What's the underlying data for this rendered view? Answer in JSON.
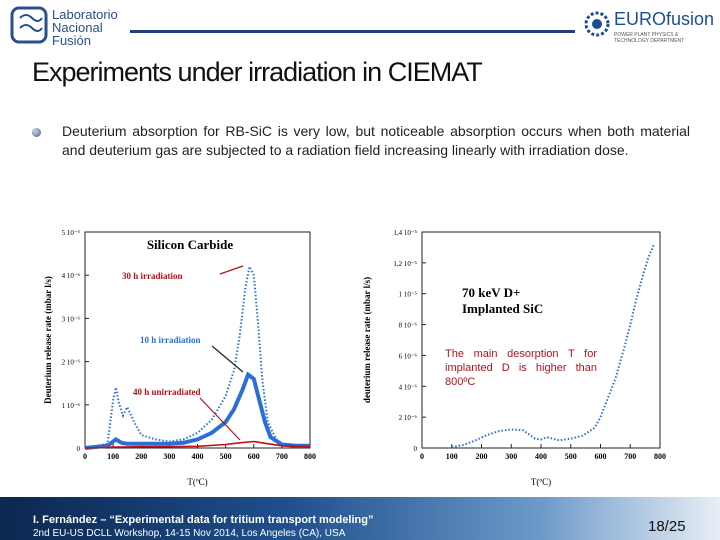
{
  "header": {
    "logo_left_lines": [
      "Laboratorio",
      "Nacional",
      "Fusión"
    ],
    "logo_right_name": "EUROfusion",
    "logo_right_sub_lines": [
      "POWER PLANT PHYSICS &",
      "TECHNOLOGY DEPARTMENT"
    ]
  },
  "slide": {
    "title": "Experiments under irradiation in CIEMAT",
    "bullet": "Deuterium absorption for RB-SiC is very low, but noticeable absorption occurs when both material and deuterium gas are subjected to a radiation field increasing linearly with irradiation dose.",
    "callout": "The main desorption T for implanted D is higher than 800ºC"
  },
  "footer": {
    "line1": "I. Fernández – “Experimental data for tritium transport modeling”",
    "line2": "2nd EU-US DCLL Workshop, 14-15 Nov 2014, Los Angeles (CA), USA",
    "page": "18/25"
  },
  "colors": {
    "series_blue": "#2b6fd6",
    "series_red": "#c0111a",
    "footer_dark": "#0c2750"
  },
  "chart_data": [
    {
      "type": "line",
      "title": "Silicon Carbide",
      "xlabel": "T(ºC)",
      "ylabel": "Deuterium release rate (mbar l/s)",
      "xlim": [
        0,
        800
      ],
      "ylim": [
        0,
        5e-06
      ],
      "x_ticks": [
        "0",
        "100",
        "200",
        "300",
        "400",
        "500",
        "600",
        "700",
        "800"
      ],
      "y_ticks": [
        "0",
        "1 10⁻⁶",
        "2 10⁻⁶",
        "3 10⁻⁶",
        "4 10⁻⁶",
        "5 10⁻⁶"
      ],
      "series": [
        {
          "name": "30 h irradiation",
          "color": "#2b6fd6",
          "style": "dotted",
          "x": [
            0,
            80,
            100,
            110,
            120,
            135,
            150,
            175,
            200,
            250,
            300,
            350,
            400,
            450,
            500,
            530,
            550,
            570,
            585,
            600,
            615,
            630,
            650,
            680,
            700,
            750,
            800
          ],
          "y": [
            0,
            1e-07,
            1.1e-06,
            1.4e-06,
            1.05e-06,
            7.5e-07,
            9.5e-07,
            6e-07,
            3e-07,
            2e-07,
            1.5e-07,
            2e-07,
            3.5e-07,
            6.5e-07,
            1.2e-06,
            1.8e-06,
            2.6e-06,
            3.7e-06,
            4.2e-06,
            4e-06,
            2.9e-06,
            1.6e-06,
            6e-07,
            2e-07,
            1e-07,
            5e-08,
            5e-08
          ]
        },
        {
          "name": "10 h irradiation",
          "color": "#2b6fd6",
          "style": "solid-thick",
          "x": [
            0,
            80,
            110,
            130,
            150,
            200,
            300,
            350,
            400,
            450,
            500,
            530,
            560,
            580,
            600,
            620,
            640,
            660,
            700,
            750,
            800
          ],
          "y": [
            0,
            5e-08,
            2e-07,
            1.2e-07,
            1e-07,
            1e-07,
            1e-07,
            1.2e-07,
            2e-07,
            3.5e-07,
            6e-07,
            9e-07,
            1.35e-06,
            1.7e-06,
            1.6e-06,
            1.1e-06,
            6e-07,
            2.5e-07,
            8e-08,
            5e-08,
            5e-08
          ]
        },
        {
          "name": "40 h unirradiated",
          "color": "#c0111a",
          "style": "solid",
          "x": [
            0,
            100,
            200,
            300,
            400,
            500,
            550,
            600,
            650,
            700,
            800
          ],
          "y": [
            0,
            2e-08,
            3e-08,
            3e-08,
            4e-08,
            8e-08,
            1.2e-07,
            1.5e-07,
            1e-07,
            5e-08,
            3e-08
          ]
        }
      ]
    },
    {
      "type": "line",
      "title": "70 keV  D+ Implanted SiC",
      "xlabel": "T(ºC)",
      "ylabel": "deuterium release rate (mbar l/s)",
      "xlim": [
        0,
        800
      ],
      "ylim": [
        0,
        1.4e-05
      ],
      "x_ticks": [
        "0",
        "100",
        "200",
        "300",
        "400",
        "500",
        "600",
        "700",
        "800"
      ],
      "y_ticks": [
        "0",
        "2 10⁻⁶",
        "4 10⁻⁶",
        "6 10⁻⁶",
        "8 10⁻⁶",
        "1 10⁻⁵",
        "1,2 10⁻⁵",
        "1,4 10⁻⁵"
      ],
      "series": [
        {
          "name": "",
          "color": "#2b6fd6",
          "style": "dotted",
          "x": [
            100,
            140,
            180,
            220,
            260,
            300,
            340,
            380,
            400,
            420,
            460,
            500,
            540,
            580,
            600,
            620,
            650,
            680,
            700,
            720,
            740,
            760,
            780
          ],
          "y": [
            5e-08,
            2e-07,
            5e-07,
            8.5e-07,
            1.1e-06,
            1.2e-06,
            1.15e-06,
            6e-07,
            5.5e-07,
            7e-07,
            5e-07,
            6e-07,
            8e-07,
            1.3e-06,
            2e-06,
            3e-06,
            4.5e-06,
            6.5e-06,
            8e-06,
            9.6e-06,
            1.1e-05,
            1.23e-05,
            1.32e-05
          ]
        }
      ]
    }
  ]
}
